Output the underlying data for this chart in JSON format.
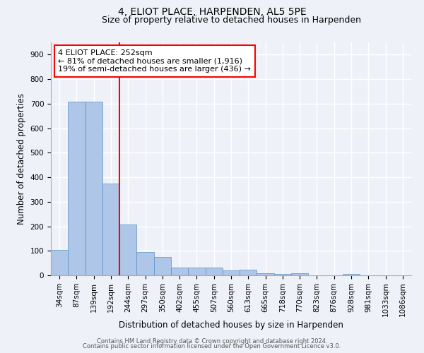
{
  "title": "4, ELIOT PLACE, HARPENDEN, AL5 5PE",
  "subtitle": "Size of property relative to detached houses in Harpenden",
  "xlabel": "Distribution of detached houses by size in Harpenden",
  "ylabel": "Number of detached properties",
  "categories": [
    "34sqm",
    "87sqm",
    "139sqm",
    "192sqm",
    "244sqm",
    "297sqm",
    "350sqm",
    "402sqm",
    "455sqm",
    "507sqm",
    "560sqm",
    "613sqm",
    "665sqm",
    "718sqm",
    "770sqm",
    "823sqm",
    "876sqm",
    "928sqm",
    "981sqm",
    "1033sqm",
    "1086sqm"
  ],
  "values": [
    103,
    707,
    707,
    375,
    207,
    96,
    75,
    32,
    33,
    33,
    20,
    22,
    8,
    5,
    10,
    0,
    0,
    7,
    0,
    0,
    0
  ],
  "bar_color": "#aec6e8",
  "bar_edge_color": "#5a8fc4",
  "bar_width": 1.0,
  "red_line_x": 4.0,
  "annotation_title": "4 ELIOT PLACE: 252sqm",
  "annotation_line1": "← 81% of detached houses are smaller (1,916)",
  "annotation_line2": "19% of semi-detached houses are larger (436) →",
  "ylim": [
    0,
    950
  ],
  "yticks": [
    0,
    100,
    200,
    300,
    400,
    500,
    600,
    700,
    800,
    900
  ],
  "footer1": "Contains HM Land Registry data © Crown copyright and database right 2024.",
  "footer2": "Contains public sector information licensed under the Open Government Licence v3.0.",
  "bg_color": "#eef2f8",
  "grid_color": "#ffffff",
  "title_fontsize": 10,
  "subtitle_fontsize": 9,
  "tick_fontsize": 7.5,
  "ylabel_fontsize": 8.5,
  "xlabel_fontsize": 8.5,
  "annotation_fontsize": 8,
  "footer_fontsize": 6
}
